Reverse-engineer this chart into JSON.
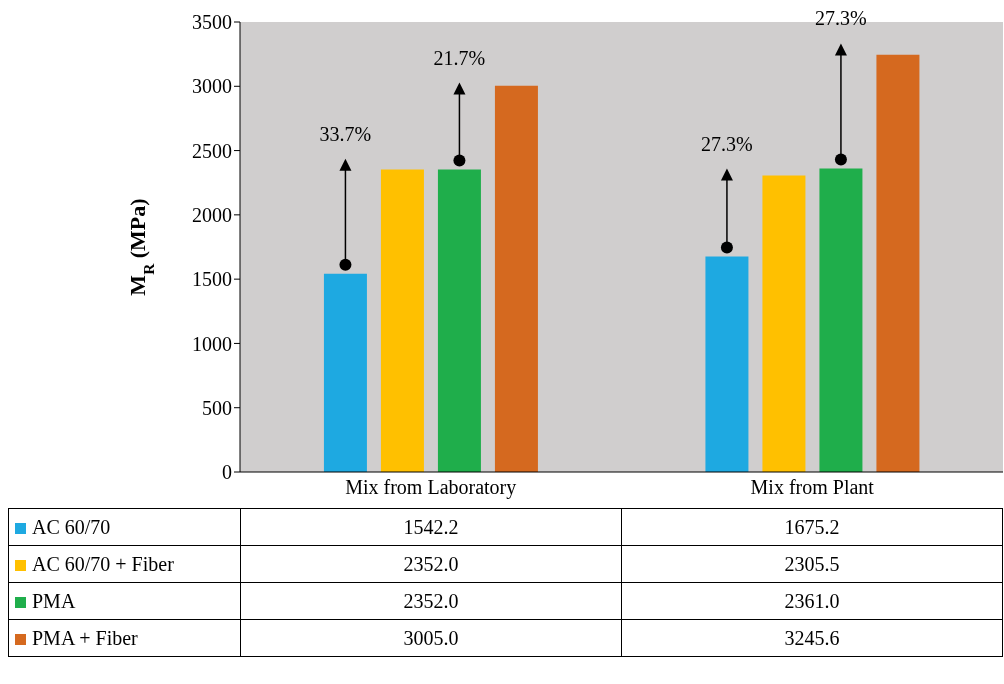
{
  "chart_data": {
    "type": "bar",
    "ylabel": "M$_{R}$ (MPa)",
    "categories": [
      "Mix from Laboratory",
      "Mix from Plant"
    ],
    "series": [
      {
        "name": "AC 60/70",
        "color": "#1ea9e1",
        "values": [
          1542.2,
          1675.2
        ],
        "value_labels": [
          "1542.2",
          "1675.2"
        ]
      },
      {
        "name": "AC 60/70 + Fiber",
        "color": "#ffc000",
        "values": [
          2352.0,
          2305.5
        ],
        "value_labels": [
          "2352.0",
          "2305.5"
        ]
      },
      {
        "name": "PMA",
        "color": "#1fae4b",
        "values": [
          2352.0,
          2361.0
        ],
        "value_labels": [
          "2352.0",
          "2361.0"
        ]
      },
      {
        "name": "PMA + Fiber",
        "color": "#d5691f",
        "values": [
          3005.0,
          3245.6
        ],
        "value_labels": [
          "3005.0",
          "3245.6"
        ]
      }
    ],
    "ylim": [
      0,
      3500
    ],
    "yticks": [
      0,
      500,
      1000,
      1500,
      2000,
      2500,
      3000,
      3500
    ],
    "legend": "bottom",
    "annotations": [
      "33.7%",
      "21.7%",
      "27.3%",
      "27.3%"
    ]
  }
}
